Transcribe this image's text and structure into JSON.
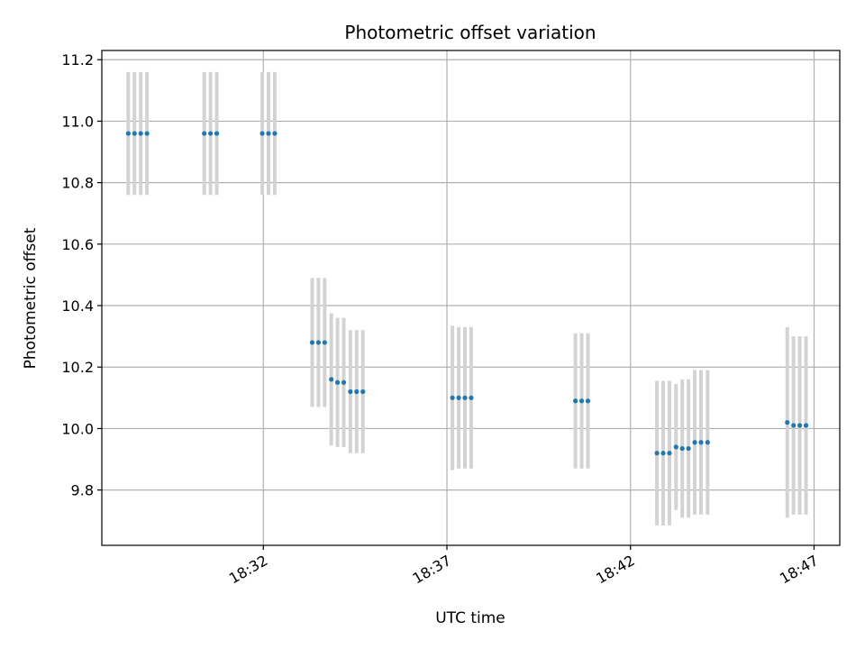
{
  "chart_data": {
    "type": "scatter",
    "title": "Photometric offset variation",
    "xlabel": "UTC time",
    "ylabel": "Photometric offset",
    "grid": true,
    "x_ticks": [
      {
        "minute": 1112,
        "label": "18:32"
      },
      {
        "minute": 1117,
        "label": "18:37"
      },
      {
        "minute": 1122,
        "label": "18:42"
      },
      {
        "minute": 1127,
        "label": "18:47"
      }
    ],
    "y_ticks": [
      9.8,
      10.0,
      10.2,
      10.4,
      10.6,
      10.8,
      11.0,
      11.2
    ],
    "xlim": [
      1107.6,
      1127.7
    ],
    "ylim": [
      9.62,
      11.23
    ],
    "colors": {
      "marker": "#1f77b4",
      "errorbar": "#d3d3d3",
      "grid": "#b0b0b0"
    },
    "points": [
      {
        "t": 1108.32,
        "y": 10.96,
        "err": 0.2
      },
      {
        "t": 1108.49,
        "y": 10.96,
        "err": 0.2
      },
      {
        "t": 1108.66,
        "y": 10.96,
        "err": 0.2
      },
      {
        "t": 1108.83,
        "y": 10.96,
        "err": 0.2
      },
      {
        "t": 1110.39,
        "y": 10.96,
        "err": 0.2
      },
      {
        "t": 1110.56,
        "y": 10.96,
        "err": 0.2
      },
      {
        "t": 1110.73,
        "y": 10.96,
        "err": 0.2
      },
      {
        "t": 1111.97,
        "y": 10.96,
        "err": 0.2
      },
      {
        "t": 1112.14,
        "y": 10.96,
        "err": 0.2
      },
      {
        "t": 1112.31,
        "y": 10.96,
        "err": 0.2
      },
      {
        "t": 1113.33,
        "y": 10.28,
        "err": 0.21
      },
      {
        "t": 1113.5,
        "y": 10.28,
        "err": 0.21
      },
      {
        "t": 1113.67,
        "y": 10.28,
        "err": 0.21
      },
      {
        "t": 1113.85,
        "y": 10.16,
        "err": 0.215
      },
      {
        "t": 1114.02,
        "y": 10.15,
        "err": 0.21
      },
      {
        "t": 1114.19,
        "y": 10.15,
        "err": 0.21
      },
      {
        "t": 1114.37,
        "y": 10.12,
        "err": 0.2
      },
      {
        "t": 1114.54,
        "y": 10.12,
        "err": 0.2
      },
      {
        "t": 1114.71,
        "y": 10.12,
        "err": 0.2
      },
      {
        "t": 1117.15,
        "y": 10.1,
        "err": 0.235
      },
      {
        "t": 1117.32,
        "y": 10.1,
        "err": 0.23
      },
      {
        "t": 1117.49,
        "y": 10.1,
        "err": 0.23
      },
      {
        "t": 1117.66,
        "y": 10.1,
        "err": 0.23
      },
      {
        "t": 1120.5,
        "y": 10.09,
        "err": 0.22
      },
      {
        "t": 1120.67,
        "y": 10.09,
        "err": 0.22
      },
      {
        "t": 1120.84,
        "y": 10.09,
        "err": 0.22
      },
      {
        "t": 1122.72,
        "y": 9.92,
        "err": 0.235
      },
      {
        "t": 1122.89,
        "y": 9.92,
        "err": 0.235
      },
      {
        "t": 1123.06,
        "y": 9.92,
        "err": 0.235
      },
      {
        "t": 1123.24,
        "y": 9.94,
        "err": 0.205
      },
      {
        "t": 1123.41,
        "y": 9.935,
        "err": 0.225
      },
      {
        "t": 1123.58,
        "y": 9.935,
        "err": 0.225
      },
      {
        "t": 1123.75,
        "y": 9.955,
        "err": 0.235
      },
      {
        "t": 1123.92,
        "y": 9.955,
        "err": 0.235
      },
      {
        "t": 1124.1,
        "y": 9.955,
        "err": 0.235
      },
      {
        "t": 1126.27,
        "y": 10.02,
        "err": 0.31
      },
      {
        "t": 1126.44,
        "y": 10.01,
        "err": 0.29
      },
      {
        "t": 1126.61,
        "y": 10.01,
        "err": 0.29
      },
      {
        "t": 1126.78,
        "y": 10.01,
        "err": 0.29
      }
    ]
  }
}
